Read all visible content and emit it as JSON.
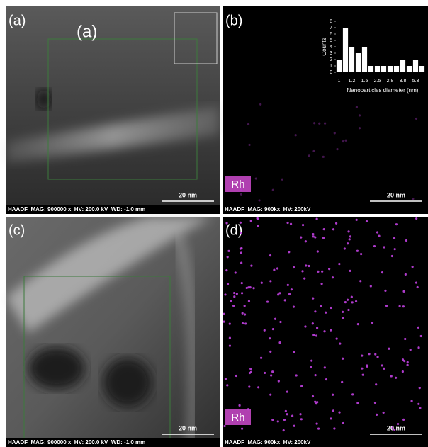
{
  "panels": [
    {
      "label": "(a)",
      "heading": "(a)",
      "footer": "HAADF  MAG: 900000 x  HV: 200.0 kV  WD: -1.0 mm",
      "scale": "20 nm"
    },
    {
      "label": "(b)",
      "element": "Rh",
      "footer": "HAADF  MAG: 900kx  HV: 200kV",
      "scale": "20 nm",
      "inset": {
        "type": "bar",
        "categories": [
          "1",
          null,
          "1.2",
          null,
          "1.5",
          null,
          "2.5",
          null,
          "2.8",
          null,
          "3.8",
          null,
          "5.3",
          null
        ],
        "values": [
          2,
          7,
          4,
          3,
          4,
          1,
          1,
          1,
          1,
          1,
          2,
          1,
          2,
          1
        ],
        "color": "#ffffff",
        "ylim": [
          0,
          8
        ],
        "yticks": [
          0,
          1,
          2,
          3,
          4,
          5,
          6,
          7,
          8
        ],
        "y_label": "Counts",
        "x_label": "Nanoparticles diameter (nm)"
      }
    },
    {
      "label": "(c)",
      "footer": "HAADF  MAG: 900000 x  HV: 200.0 kV  WD: -1.0 mm",
      "scale": "20 nm"
    },
    {
      "label": "(d)",
      "element": "Rh",
      "footer": "HAADF  MAG: 900kx  HV: 200kV",
      "scale": "20 nm"
    }
  ]
}
